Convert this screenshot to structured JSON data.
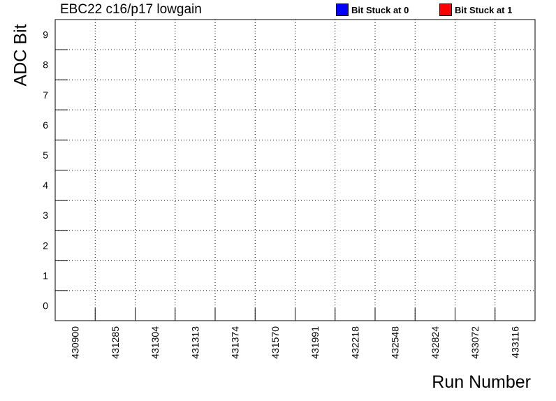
{
  "title": "EBC22 c16/p17 lowgain",
  "legend": [
    {
      "label": "Bit Stuck at 0",
      "color": "#0000ff"
    },
    {
      "label": "Bit Stuck at 1",
      "color": "#ff0000"
    }
  ],
  "chart_data": {
    "type": "heatmap",
    "title": "EBC22 c16/p17 lowgain",
    "xlabel": "Run Number",
    "ylabel": "ADC Bit",
    "categories": [
      "430900",
      "431285",
      "431304",
      "431313",
      "431374",
      "431570",
      "431991",
      "432218",
      "432548",
      "432824",
      "433072",
      "433116"
    ],
    "y_ticks": [
      "0",
      "1",
      "2",
      "3",
      "4",
      "5",
      "6",
      "7",
      "8",
      "9"
    ],
    "grid": true,
    "legend_position": "top-right",
    "series": [
      {
        "name": "Bit Stuck at 0",
        "color": "#0000ff",
        "cells": []
      },
      {
        "name": "Bit Stuck at 1",
        "color": "#ff0000",
        "cells": []
      }
    ]
  }
}
